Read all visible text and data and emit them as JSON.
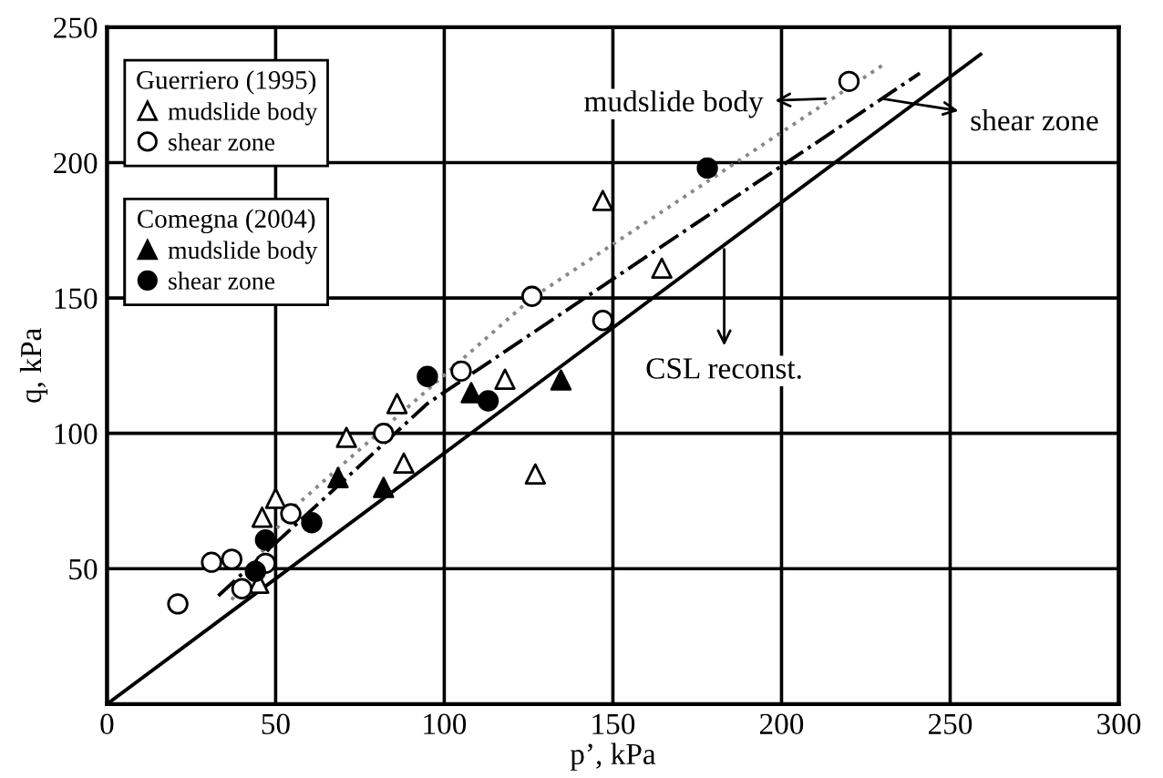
{
  "chart_data": {
    "type": "scatter",
    "xlabel": "p’, kPa",
    "ylabel": "q, kPa",
    "xlim": [
      0,
      300
    ],
    "ylim": [
      0,
      250
    ],
    "xticks": [
      0,
      50,
      100,
      150,
      200,
      250,
      300
    ],
    "yticks": [
      50,
      100,
      150,
      200,
      250
    ],
    "grid": true,
    "legend": "top left",
    "legend_title": [
      "Guerriero (1995)",
      "Comegna (2004)"
    ],
    "series": [
      {
        "name": "mudslide body",
        "color": "#000000",
        "marker": "triangle",
        "x": [
          46,
          50,
          71,
          86,
          88,
          45,
          127,
          118,
          164.5,
          147
        ],
        "values": [
          69,
          76,
          98.5,
          111,
          89,
          44.6,
          85,
          120,
          161,
          186
        ]
      },
      {
        "name": "shear zone",
        "color": "#000000",
        "marker": "circle",
        "x": [
          21,
          31,
          37,
          40,
          47,
          54.5,
          82,
          105,
          126,
          147,
          220
        ],
        "values": [
          37,
          52.4,
          53.5,
          42.6,
          52,
          70.3,
          100,
          123,
          150.6,
          141.7,
          230
        ]
      },
      {
        "name": "mudslide body",
        "color": "#000000",
        "marker": "triangle",
        "x": [
          68.5,
          82,
          108,
          134.6
        ],
        "values": [
          83.6,
          80,
          115,
          119.7
        ]
      },
      {
        "name": "shear zone",
        "color": "#000000",
        "marker": "circle",
        "x": [
          47,
          44,
          60.7,
          95,
          113,
          178
        ],
        "values": [
          60.6,
          49,
          67,
          121,
          112,
          198
        ]
      },
      {
        "type": "line",
        "color": "#000000",
        "line_style": "solid",
        "x": [
          0,
          259
        ],
        "values": [
          0,
          240
        ]
      },
      {
        "type": "line",
        "color": "#000000",
        "line_style": "dashdot",
        "x": [
          33,
          95,
          241
        ],
        "values": [
          40,
          111,
          233
        ]
      },
      {
        "type": "line",
        "color": "#888888",
        "line_style": "dotted",
        "x": [
          37,
          53,
          126,
          230
        ],
        "values": [
          38.5,
          70,
          150,
          236
        ]
      }
    ],
    "annotations": [
      {
        "text": "mudslide body",
        "x": 213,
        "y": 223.6
      },
      {
        "text": "shear zone",
        "x": 230,
        "y": 223.6
      },
      {
        "text": "CSL reconst.",
        "x": 183,
        "y": 168
      }
    ]
  }
}
